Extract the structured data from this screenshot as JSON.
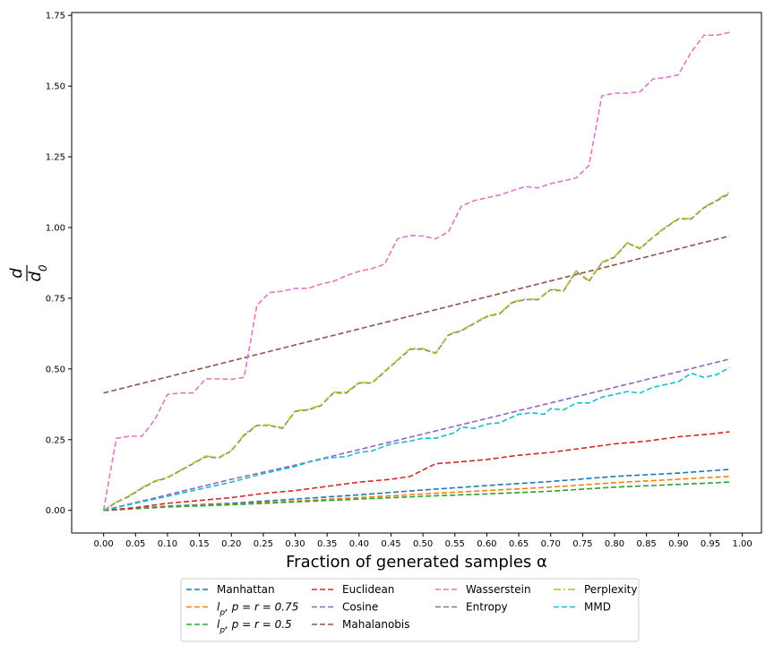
{
  "chart_data": {
    "type": "line",
    "xlabel": "Fraction of generated samples α",
    "ylabel": "d / d0",
    "xlim": [
      -0.05,
      1.03
    ],
    "ylim": [
      -0.08,
      1.76
    ],
    "xticks": [
      0.0,
      0.05,
      0.1,
      0.15,
      0.2,
      0.25,
      0.3,
      0.35,
      0.4,
      0.45,
      0.5,
      0.55,
      0.6,
      0.65,
      0.7,
      0.75,
      0.8,
      0.85,
      0.9,
      0.95,
      1.0
    ],
    "xtick_labels": [
      "0.00",
      "0.05",
      "0.10",
      "0.15",
      "0.20",
      "0.25",
      "0.30",
      "0.35",
      "0.40",
      "0.45",
      "0.50",
      "0.55",
      "0.60",
      "0.65",
      "0.70",
      "0.75",
      "0.80",
      "0.85",
      "0.90",
      "0.95",
      "1.00"
    ],
    "yticks": [
      0.0,
      0.25,
      0.5,
      0.75,
      1.0,
      1.25,
      1.5,
      1.75
    ],
    "ytick_labels": [
      "0.00",
      "0.25",
      "0.50",
      "0.75",
      "1.00",
      "1.25",
      "1.50",
      "1.75"
    ],
    "grid": false,
    "legend_position": "below",
    "series": [
      {
        "name": "Manhattan",
        "label_parts": [
          "Manhattan"
        ],
        "color": "#1f77b4",
        "style": "dashed",
        "x": [
          0,
          0.1,
          0.2,
          0.3,
          0.4,
          0.5,
          0.6,
          0.7,
          0.8,
          0.9,
          0.98
        ],
        "y": [
          0,
          0.015,
          0.025,
          0.04,
          0.055,
          0.072,
          0.088,
          0.102,
          0.12,
          0.132,
          0.145
        ]
      },
      {
        "name": "lp, p=r=0.75",
        "label_parts": [
          "l",
          "p",
          ", p = r = 0.75"
        ],
        "color": "#ff7f0e",
        "style": "dashed",
        "x": [
          0,
          0.1,
          0.2,
          0.3,
          0.4,
          0.5,
          0.6,
          0.7,
          0.8,
          0.9,
          0.98
        ],
        "y": [
          0,
          0.013,
          0.022,
          0.033,
          0.045,
          0.058,
          0.07,
          0.082,
          0.098,
          0.11,
          0.12
        ]
      },
      {
        "name": "lp, p=r=0.5",
        "label_parts": [
          "l",
          "p",
          ", p = r = 0.5"
        ],
        "color": "#2ca02c",
        "style": "dashed",
        "x": [
          0,
          0.1,
          0.2,
          0.3,
          0.4,
          0.5,
          0.6,
          0.7,
          0.8,
          0.9,
          0.98
        ],
        "y": [
          0,
          0.012,
          0.02,
          0.03,
          0.04,
          0.05,
          0.058,
          0.068,
          0.082,
          0.092,
          0.1
        ]
      },
      {
        "name": "Euclidean",
        "label_parts": [
          "Euclidean"
        ],
        "color": "#d62728",
        "style": "dashed",
        "x": [
          0,
          0.05,
          0.1,
          0.15,
          0.2,
          0.25,
          0.3,
          0.35,
          0.4,
          0.45,
          0.48,
          0.52,
          0.55,
          0.6,
          0.65,
          0.7,
          0.75,
          0.8,
          0.85,
          0.9,
          0.95,
          0.98
        ],
        "y": [
          0,
          0.01,
          0.025,
          0.035,
          0.045,
          0.06,
          0.07,
          0.085,
          0.1,
          0.11,
          0.12,
          0.165,
          0.17,
          0.18,
          0.195,
          0.205,
          0.22,
          0.235,
          0.245,
          0.26,
          0.27,
          0.278
        ]
      },
      {
        "name": "Cosine",
        "label_parts": [
          "Cosine"
        ],
        "color": "#9467bd",
        "style": "dashed",
        "x": [
          0,
          0.1,
          0.2,
          0.3,
          0.4,
          0.5,
          0.6,
          0.7,
          0.8,
          0.9,
          0.98
        ],
        "y": [
          0,
          0.055,
          0.11,
          0.16,
          0.215,
          0.27,
          0.325,
          0.38,
          0.435,
          0.49,
          0.535
        ]
      },
      {
        "name": "Mahalanobis",
        "label_parts": [
          "Mahalanobis"
        ],
        "color": "#8c564b",
        "style": "dashed",
        "x": [
          0,
          0.98
        ],
        "y": [
          0.415,
          0.97
        ]
      },
      {
        "name": "Wasserstein",
        "label_parts": [
          "Wasserstein"
        ],
        "color": "#e377c2",
        "style": "dashed",
        "x": [
          0,
          0.02,
          0.04,
          0.06,
          0.08,
          0.1,
          0.12,
          0.14,
          0.16,
          0.18,
          0.2,
          0.22,
          0.24,
          0.26,
          0.28,
          0.3,
          0.32,
          0.34,
          0.36,
          0.38,
          0.4,
          0.42,
          0.44,
          0.46,
          0.48,
          0.5,
          0.52,
          0.54,
          0.56,
          0.58,
          0.6,
          0.62,
          0.64,
          0.66,
          0.68,
          0.7,
          0.72,
          0.74,
          0.76,
          0.78,
          0.8,
          0.82,
          0.84,
          0.86,
          0.88,
          0.9,
          0.92,
          0.94,
          0.96,
          0.98
        ],
        "y": [
          0,
          0.255,
          0.262,
          0.262,
          0.32,
          0.41,
          0.415,
          0.415,
          0.465,
          0.465,
          0.463,
          0.47,
          0.725,
          0.77,
          0.775,
          0.785,
          0.785,
          0.8,
          0.81,
          0.83,
          0.845,
          0.855,
          0.87,
          0.96,
          0.972,
          0.97,
          0.96,
          0.985,
          1.075,
          1.095,
          1.105,
          1.115,
          1.13,
          1.145,
          1.14,
          1.155,
          1.165,
          1.175,
          1.22,
          1.465,
          1.475,
          1.475,
          1.48,
          1.525,
          1.53,
          1.54,
          1.62,
          1.68,
          1.68,
          1.69
        ]
      },
      {
        "name": "Entropy",
        "label_parts": [
          "Entropy"
        ],
        "color": "#7f7f7f",
        "style": "dashed",
        "x": [
          0,
          0.02,
          0.04,
          0.06,
          0.08,
          0.1,
          0.12,
          0.14,
          0.16,
          0.18,
          0.2,
          0.22,
          0.24,
          0.26,
          0.28,
          0.3,
          0.32,
          0.34,
          0.36,
          0.38,
          0.4,
          0.42,
          0.44,
          0.46,
          0.48,
          0.5,
          0.52,
          0.54,
          0.56,
          0.58,
          0.6,
          0.62,
          0.64,
          0.66,
          0.68,
          0.7,
          0.72,
          0.74,
          0.76,
          0.78,
          0.8,
          0.82,
          0.84,
          0.86,
          0.88,
          0.9,
          0.92,
          0.94,
          0.96,
          0.98
        ],
        "y": [
          0,
          0.028,
          0.05,
          0.078,
          0.102,
          0.115,
          0.14,
          0.165,
          0.19,
          0.185,
          0.21,
          0.265,
          0.3,
          0.3,
          0.29,
          0.35,
          0.355,
          0.37,
          0.415,
          0.415,
          0.45,
          0.45,
          0.49,
          0.53,
          0.57,
          0.57,
          0.555,
          0.62,
          0.635,
          0.66,
          0.685,
          0.695,
          0.735,
          0.745,
          0.745,
          0.78,
          0.775,
          0.845,
          0.81,
          0.875,
          0.895,
          0.945,
          0.925,
          0.965,
          1.0,
          1.03,
          1.03,
          1.07,
          1.095,
          1.12
        ]
      },
      {
        "name": "Perplexity",
        "label_parts": [
          "Perplexity"
        ],
        "color": "#bcbd22",
        "style": "dashdot",
        "x": [
          0,
          0.02,
          0.04,
          0.06,
          0.08,
          0.1,
          0.12,
          0.14,
          0.16,
          0.18,
          0.2,
          0.22,
          0.24,
          0.26,
          0.28,
          0.3,
          0.32,
          0.34,
          0.36,
          0.38,
          0.4,
          0.42,
          0.44,
          0.46,
          0.48,
          0.5,
          0.52,
          0.54,
          0.56,
          0.58,
          0.6,
          0.62,
          0.64,
          0.66,
          0.68,
          0.7,
          0.72,
          0.74,
          0.76,
          0.78,
          0.8,
          0.82,
          0.84,
          0.86,
          0.88,
          0.9,
          0.92,
          0.94,
          0.96,
          0.98
        ],
        "y": [
          0,
          0.03,
          0.052,
          0.08,
          0.104,
          0.117,
          0.142,
          0.167,
          0.192,
          0.187,
          0.212,
          0.268,
          0.302,
          0.302,
          0.292,
          0.352,
          0.357,
          0.372,
          0.418,
          0.418,
          0.452,
          0.452,
          0.492,
          0.532,
          0.572,
          0.572,
          0.557,
          0.622,
          0.637,
          0.662,
          0.687,
          0.697,
          0.737,
          0.747,
          0.747,
          0.782,
          0.777,
          0.847,
          0.812,
          0.877,
          0.897,
          0.947,
          0.927,
          0.967,
          1.002,
          1.032,
          1.032,
          1.072,
          1.097,
          1.125
        ]
      },
      {
        "name": "MMD",
        "label_parts": [
          "MMD"
        ],
        "color": "#17becf",
        "style": "dashed",
        "x": [
          0,
          0.05,
          0.1,
          0.15,
          0.2,
          0.25,
          0.3,
          0.32,
          0.35,
          0.38,
          0.4,
          0.42,
          0.45,
          0.48,
          0.5,
          0.52,
          0.55,
          0.56,
          0.58,
          0.6,
          0.62,
          0.65,
          0.67,
          0.69,
          0.7,
          0.72,
          0.74,
          0.76,
          0.78,
          0.8,
          0.82,
          0.84,
          0.86,
          0.88,
          0.9,
          0.92,
          0.94,
          0.96,
          0.98
        ],
        "y": [
          0,
          0.025,
          0.05,
          0.075,
          0.1,
          0.13,
          0.155,
          0.17,
          0.185,
          0.19,
          0.205,
          0.21,
          0.235,
          0.245,
          0.255,
          0.255,
          0.275,
          0.295,
          0.29,
          0.305,
          0.31,
          0.34,
          0.345,
          0.34,
          0.36,
          0.355,
          0.38,
          0.38,
          0.4,
          0.41,
          0.42,
          0.415,
          0.435,
          0.445,
          0.455,
          0.485,
          0.47,
          0.48,
          0.505
        ]
      }
    ]
  }
}
